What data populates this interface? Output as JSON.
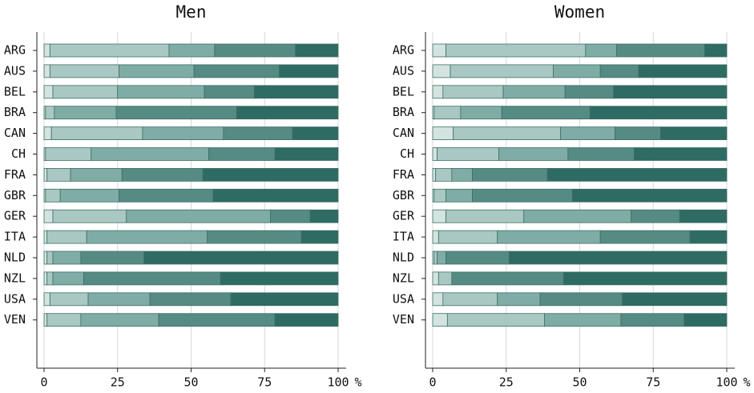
{
  "chart_data": [
    {
      "type": "bar",
      "orientation": "horizontal",
      "stacked": true,
      "title": "Men",
      "xlabel": "%",
      "categories": [
        "ARG",
        "AUS",
        "BEL",
        "BRA",
        "CAN",
        "CH",
        "FRA",
        "GBR",
        "GER",
        "ITA",
        "NLD",
        "NZL",
        "USA",
        "VEN"
      ],
      "series": [
        {
          "color": "#d3e3df",
          "values": [
            2,
            2,
            3,
            0.5,
            2.5,
            0.5,
            1,
            0.5,
            3,
            1,
            1,
            1,
            2,
            1
          ]
        },
        {
          "color": "#a9c8c3",
          "values": [
            40.5,
            23.5,
            22,
            3,
            31,
            15.5,
            8,
            5,
            25,
            13.5,
            2,
            2,
            13,
            11.5
          ]
        },
        {
          "color": "#7fada6",
          "values": [
            15.5,
            25.5,
            29.5,
            21,
            27.5,
            40,
            17.5,
            20,
            49,
            41,
            9.5,
            10.5,
            21,
            26.5
          ]
        },
        {
          "color": "#558b83",
          "values": [
            27.5,
            29,
            17,
            41,
            23.5,
            22.5,
            27.5,
            32,
            13.5,
            32,
            21.5,
            46.5,
            27.5,
            39.5
          ]
        },
        {
          "color": "#2e6b62",
          "values": [
            14.5,
            20,
            28.5,
            34.5,
            15.5,
            21.5,
            46,
            42.5,
            9.5,
            12.5,
            66,
            40,
            36.5,
            21.5
          ]
        }
      ],
      "xlim": [
        0,
        100
      ],
      "xticks": [
        0,
        25,
        50,
        75,
        100
      ],
      "grid": true
    },
    {
      "type": "bar",
      "orientation": "horizontal",
      "stacked": true,
      "title": "Women",
      "xlabel": "%",
      "categories": [
        "ARG",
        "AUS",
        "BEL",
        "BRA",
        "CAN",
        "CH",
        "FRA",
        "GBR",
        "GER",
        "ITA",
        "NLD",
        "NZL",
        "USA",
        "VEN"
      ],
      "series": [
        {
          "color": "#d3e3df",
          "values": [
            4.5,
            6,
            3.5,
            0.5,
            7,
            1.5,
            1,
            0.5,
            4.5,
            2,
            0.5,
            2,
            3.5,
            5
          ]
        },
        {
          "color": "#a9c8c3",
          "values": [
            47.5,
            35,
            20.5,
            9,
            36.5,
            21,
            5.5,
            4,
            26.5,
            20,
            1,
            4.5,
            18.5,
            33
          ]
        },
        {
          "color": "#7fada6",
          "values": [
            10.5,
            16,
            21,
            14,
            18.5,
            23.5,
            7,
            9,
            36.5,
            35,
            3,
            0,
            14.5,
            26
          ]
        },
        {
          "color": "#558b83",
          "values": [
            30,
            13,
            16.5,
            30,
            15.5,
            22.5,
            25.5,
            34,
            16.5,
            30.5,
            21.5,
            38,
            28,
            21.5
          ]
        },
        {
          "color": "#2e6b62",
          "values": [
            7.5,
            30,
            38.5,
            46.5,
            22.5,
            31.5,
            61,
            52.5,
            16,
            12.5,
            74,
            55.5,
            35.5,
            14.5
          ]
        }
      ],
      "xlim": [
        0,
        100
      ],
      "xticks": [
        0,
        25,
        50,
        75,
        100
      ],
      "grid": true
    }
  ]
}
